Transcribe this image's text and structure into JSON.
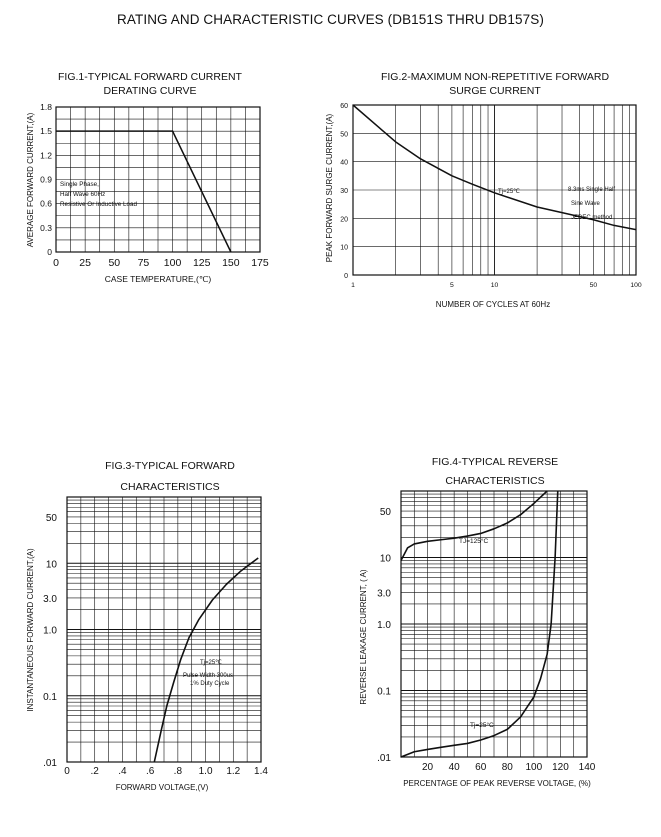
{
  "page": {
    "title": "RATING AND CHARACTERISTIC CURVES (DB151S THRU DB157S)"
  },
  "chart_data": [
    {
      "type": "line",
      "title": "FIG.1-TYPICAL FORWARD CURRENT\nDERATING CURVE",
      "xlabel": "CASE TEMPERATURE,(℃)",
      "ylabel": "AVERAGE FORWARD CURRENT,(A)",
      "xlim": [
        0,
        175
      ],
      "ylim": [
        0,
        1.8
      ],
      "x_ticks": [
        "0",
        "25",
        "50",
        "75",
        "100",
        "125",
        "150",
        "175"
      ],
      "y_ticks": [
        "1.8",
        "1.5",
        "1.2",
        "0.9",
        "0.6",
        "0.3",
        "0"
      ],
      "grid": true,
      "annotations": [
        "Single Phase,",
        "Half Wave 60Hz",
        "Resistive Or Inductive Load"
      ],
      "series": [
        {
          "x": [
            0,
            100,
            150
          ],
          "y": [
            1.5,
            1.5,
            0
          ]
        }
      ]
    },
    {
      "type": "line",
      "title": "FIG.2-MAXIMUM NON-REPETITIVE FORWARD\nSURGE CURRENT",
      "xlabel": "NUMBER OF CYCLES AT 60Hz",
      "ylabel": "PEAK FORWARD SURGE CURRENT,(A)",
      "xscale": "log",
      "xlim": [
        1,
        100
      ],
      "ylim": [
        0,
        60
      ],
      "x_ticks": [
        "1",
        "5",
        "10",
        "50",
        "100"
      ],
      "y_ticks": [
        "60",
        "50",
        "40",
        "30",
        "20",
        "10",
        "0"
      ],
      "grid": true,
      "annotations": [
        "Tj=25℃",
        "8.3ms Single Half",
        "Sine Wave",
        "JEDEC method"
      ],
      "series": [
        {
          "x": [
            1,
            2,
            3,
            5,
            7,
            10,
            20,
            30,
            50,
            70,
            100
          ],
          "y": [
            60,
            47,
            41,
            35,
            32,
            29,
            24,
            22,
            19.5,
            17.5,
            16
          ]
        }
      ]
    },
    {
      "type": "line",
      "title": "FIG.3-TYPICAL FORWARD\nCHARACTERISTICS",
      "xlabel": "FORWARD VOLTAGE,(V)",
      "ylabel": "INSTANTANEOUS FORWARD CURRENT,(A)",
      "yscale": "log",
      "xlim": [
        0,
        1.4
      ],
      "ylim": [
        0.01,
        100
      ],
      "x_ticks": [
        "0",
        ".2",
        ".4",
        ".6",
        ".8",
        "1.0",
        "1.2",
        "1.4"
      ],
      "y_ticks": [
        "50",
        "10",
        "3.0",
        "1.0",
        "0.1",
        ".01"
      ],
      "grid": true,
      "annotations": [
        "Tj=25℃",
        "Pulse Width 300us",
        "1% Duty Cycle"
      ],
      "series": [
        {
          "x": [
            0.63,
            0.68,
            0.72,
            0.77,
            0.82,
            0.88,
            0.95,
            1.05,
            1.15,
            1.25,
            1.38
          ],
          "y": [
            0.01,
            0.03,
            0.07,
            0.16,
            0.35,
            0.75,
            1.4,
            2.8,
            4.8,
            7.5,
            12
          ]
        }
      ]
    },
    {
      "type": "line",
      "title": "FIG.4-TYPICAL REVERSE\nCHARACTERISTICS",
      "xlabel": "PERCENTAGE OF PEAK REVERSE VOLTAGE, (%)",
      "ylabel": "REVERSE LEAKAGE CURRENT, ( A)",
      "yscale": "log",
      "xlim": [
        0,
        140
      ],
      "ylim": [
        0.01,
        100
      ],
      "x_ticks": [
        "20",
        "40",
        "60",
        "80",
        "100",
        "120",
        "140"
      ],
      "y_ticks": [
        "50",
        "10",
        "3.0",
        "1.0",
        "0.1",
        ".01"
      ],
      "grid": true,
      "series": [
        {
          "name": "TJ=125°C",
          "x": [
            0,
            5,
            10,
            20,
            30,
            40,
            50,
            60,
            70,
            80,
            90,
            100,
            110
          ],
          "y": [
            9,
            14,
            16,
            17.5,
            18.5,
            19.5,
            21,
            23,
            27,
            33,
            44,
            65,
            100
          ]
        },
        {
          "name": "Tj=25°C",
          "x": [
            0,
            10,
            20,
            30,
            40,
            50,
            60,
            70,
            80,
            90,
            100,
            105,
            110,
            113,
            116,
            118
          ],
          "y": [
            0.01,
            0.012,
            0.013,
            0.014,
            0.015,
            0.016,
            0.018,
            0.021,
            0.026,
            0.04,
            0.08,
            0.15,
            0.35,
            1.0,
            10,
            100
          ]
        }
      ],
      "series_labels": [
        "TJ=125°C",
        "Tj=25°C"
      ]
    }
  ]
}
